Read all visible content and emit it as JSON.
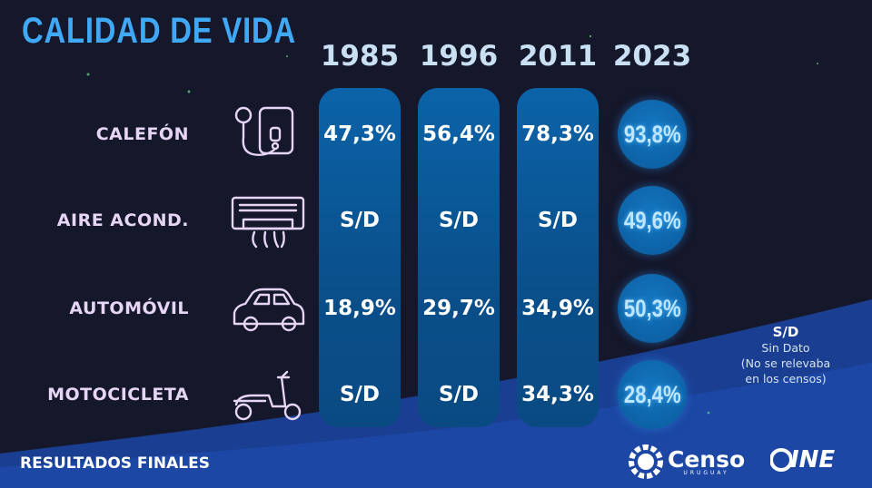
{
  "header": {
    "title": "CALIDAD DE VIDA"
  },
  "chart_data": {
    "type": "table",
    "columns": [
      "1985",
      "1996",
      "2011",
      "2023"
    ],
    "rows": [
      {
        "label": "CALEFÓN",
        "icon": "water-heater-icon",
        "values": [
          "47,3%",
          "56,4%",
          "78,3%",
          "93,8%"
        ]
      },
      {
        "label": "AIRE ACOND.",
        "icon": "air-conditioner-icon",
        "values": [
          "S/D",
          "S/D",
          "S/D",
          "49,6%"
        ]
      },
      {
        "label": "AUTOMÓVIL",
        "icon": "car-icon",
        "values": [
          "18,9%",
          "29,7%",
          "34,9%",
          "50,3%"
        ]
      },
      {
        "label": "MOTOCICLETA",
        "icon": "scooter-icon",
        "values": [
          "S/D",
          "S/D",
          "34,3%",
          "28,4%"
        ]
      }
    ]
  },
  "legend": {
    "abbr": "S/D",
    "line1": "Sin Dato",
    "line2": "(No se relevaba",
    "line3": "en los censos)"
  },
  "footer": {
    "label": "RESULTADOS FINALES",
    "logo1": "Censo",
    "logo1_sub": "URUGUAY",
    "logo2": "INE"
  },
  "colors": {
    "background": "#15172b",
    "title": "#3fa9f5",
    "bar": "#0b5a9c",
    "label": "#e6d5f5"
  }
}
